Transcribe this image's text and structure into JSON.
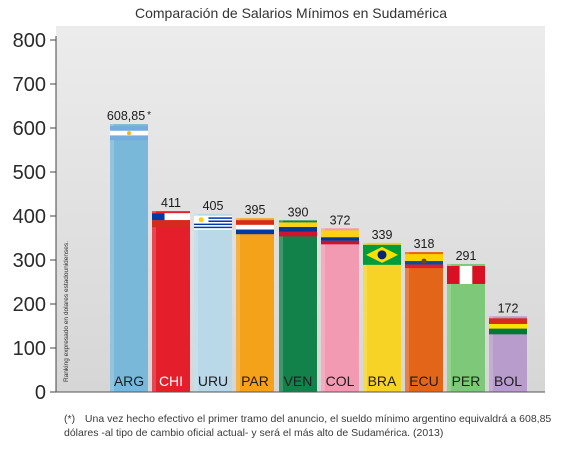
{
  "chart_data": {
    "type": "bar",
    "title": "Comparación de Salarios Mínimos en Sudamérica",
    "categories": [
      "ARG",
      "CHI",
      "URU",
      "PAR",
      "VEN",
      "COL",
      "BRA",
      "ECU",
      "PER",
      "BOL"
    ],
    "values": [
      608.85,
      411,
      405,
      395,
      390,
      372,
      339,
      318,
      291,
      172
    ],
    "value_labels": [
      "608,85",
      "411",
      "405",
      "395",
      "390",
      "372",
      "339",
      "318",
      "291",
      "172"
    ],
    "value_label_suffix": [
      "*",
      "",
      "",
      "",
      "",
      "",
      "",
      "",
      "",
      ""
    ],
    "bar_colors": [
      "#79b8d8",
      "#e41e2b",
      "#b9d8e8",
      "#f5a21b",
      "#12824a",
      "#f19ab2",
      "#f6d325",
      "#e26519",
      "#7ec87a",
      "#b89ccb"
    ],
    "flags": [
      "argentina",
      "chile",
      "uruguay",
      "paraguay",
      "venezuela",
      "colombia",
      "brazil",
      "ecuador",
      "peru",
      "bolivia"
    ],
    "yticks": [
      0,
      100,
      200,
      300,
      400,
      500,
      600,
      700,
      800
    ],
    "ylim": [
      0,
      800
    ],
    "grid": false,
    "axis_note": "Ranking expresado en dolares estadounidenses."
  },
  "footnote": {
    "mark": "(*)",
    "text": "Una vez hecho efectivo el primer tramo del anuncio, el sueldo mínimo argentino equivaldrá a 608,85 dólares -al tipo de cambio oficial actual- y será el más alto de Sudamérica. (2013)"
  }
}
